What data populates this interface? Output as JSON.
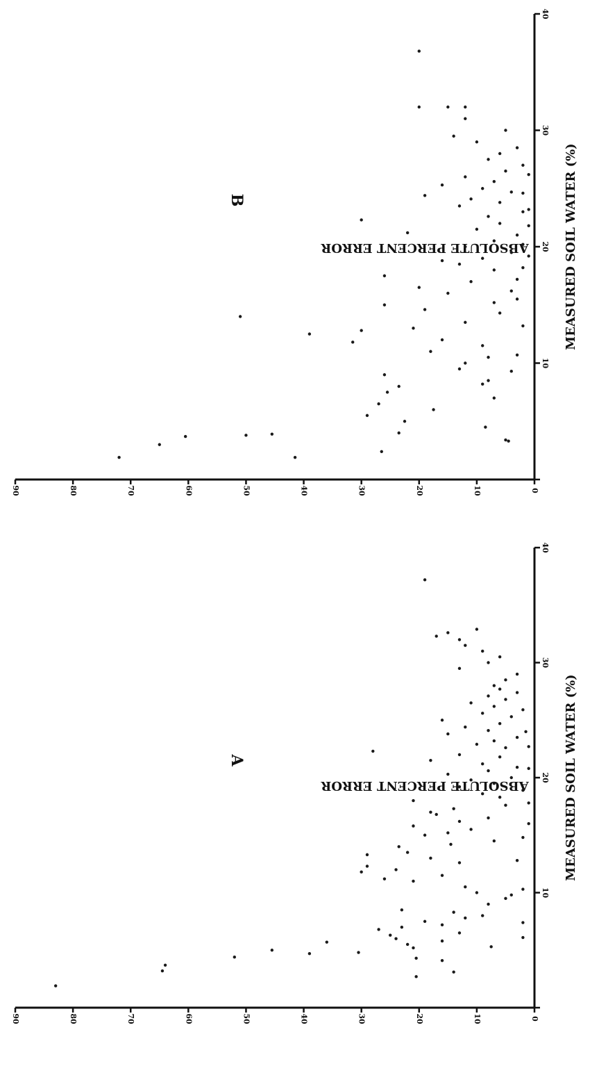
{
  "chart_data": [
    {
      "type": "scatter",
      "panel_label": "A",
      "xlabel": "MEASURED SOIL WATER (%)",
      "ylabel": "ABSOLUTE PERCENT ERROR",
      "xlim": [
        0,
        40
      ],
      "ylim": [
        0,
        90
      ],
      "xticks": [
        0,
        10,
        20,
        30,
        40
      ],
      "yticks": [
        0,
        10,
        20,
        30,
        40,
        50,
        60,
        70,
        80,
        90
      ],
      "x_tick_labels": [
        "10",
        "20",
        "30",
        "40"
      ],
      "y_tick_labels": [
        "0",
        "10",
        "20",
        "30",
        "40",
        "50",
        "60",
        "70",
        "80",
        "90"
      ],
      "grid": false,
      "points": [
        [
          1.9,
          83
        ],
        [
          2.7,
          20.5
        ],
        [
          3.2,
          64.5
        ],
        [
          3.7,
          64
        ],
        [
          4.3,
          20.5
        ],
        [
          4.4,
          52
        ],
        [
          4.7,
          39
        ],
        [
          4.8,
          30.5
        ],
        [
          5,
          45.5
        ],
        [
          5.2,
          21
        ],
        [
          5.3,
          7.5
        ],
        [
          5.5,
          22
        ],
        [
          5.7,
          36
        ],
        [
          6,
          24
        ],
        [
          6.3,
          25
        ],
        [
          6.5,
          13
        ],
        [
          6.8,
          27
        ],
        [
          7,
          23
        ],
        [
          7.2,
          16
        ],
        [
          7.5,
          19
        ],
        [
          7.8,
          12
        ],
        [
          8,
          9
        ],
        [
          8.3,
          14
        ],
        [
          8.5,
          23
        ],
        [
          9,
          8
        ],
        [
          9.5,
          5
        ],
        [
          10,
          10
        ],
        [
          10.5,
          12
        ],
        [
          11,
          21
        ],
        [
          11.2,
          26
        ],
        [
          11.5,
          16
        ],
        [
          11.8,
          30
        ],
        [
          12,
          24
        ],
        [
          12.3,
          29
        ],
        [
          12.6,
          13
        ],
        [
          13,
          18
        ],
        [
          13.3,
          29
        ],
        [
          13.5,
          22
        ],
        [
          14,
          23.5
        ],
        [
          14.2,
          14.5
        ],
        [
          14.5,
          7
        ],
        [
          15,
          19
        ],
        [
          15.2,
          15
        ],
        [
          15.5,
          11
        ],
        [
          15.8,
          21
        ],
        [
          16.2,
          13
        ],
        [
          16.5,
          8
        ],
        [
          16.8,
          17
        ],
        [
          17,
          18
        ],
        [
          17.3,
          14
        ],
        [
          17.6,
          5
        ],
        [
          18,
          21
        ],
        [
          18.3,
          6
        ],
        [
          18.6,
          9
        ],
        [
          18.9,
          2
        ],
        [
          19.2,
          13
        ],
        [
          19.5,
          7
        ],
        [
          19.8,
          11
        ],
        [
          20,
          4
        ],
        [
          20.3,
          15
        ],
        [
          20.6,
          8
        ],
        [
          20.9,
          3
        ],
        [
          21.2,
          9
        ],
        [
          21.5,
          18
        ],
        [
          21.8,
          6
        ],
        [
          22,
          13
        ],
        [
          22.3,
          28
        ],
        [
          22.6,
          5
        ],
        [
          22.9,
          10
        ],
        [
          23.2,
          7
        ],
        [
          23.5,
          3
        ],
        [
          23.8,
          15
        ],
        [
          24.1,
          8
        ],
        [
          24.4,
          12
        ],
        [
          24.7,
          6
        ],
        [
          25,
          16
        ],
        [
          25.3,
          4
        ],
        [
          25.6,
          9
        ],
        [
          25.9,
          2
        ],
        [
          26.2,
          7
        ],
        [
          26.5,
          11
        ],
        [
          26.8,
          5
        ],
        [
          27.1,
          8
        ],
        [
          27.4,
          3
        ],
        [
          27.7,
          6
        ],
        [
          28,
          7
        ],
        [
          28.5,
          5
        ],
        [
          29,
          3
        ],
        [
          29.5,
          13
        ],
        [
          30,
          8
        ],
        [
          30.5,
          6
        ],
        [
          31,
          9
        ],
        [
          31.5,
          12
        ],
        [
          32,
          13
        ],
        [
          32.3,
          17
        ],
        [
          32.6,
          15
        ],
        [
          32.9,
          10
        ],
        [
          37.2,
          19
        ],
        [
          3.1,
          14
        ],
        [
          4.1,
          16
        ],
        [
          5.8,
          16
        ],
        [
          6.1,
          2
        ],
        [
          7.4,
          2
        ],
        [
          9.8,
          4
        ],
        [
          10.3,
          2
        ],
        [
          12.8,
          3
        ],
        [
          14.8,
          2
        ],
        [
          16,
          1
        ],
        [
          17.8,
          1
        ],
        [
          20.8,
          1
        ],
        [
          22.7,
          1
        ],
        [
          24,
          1.5
        ]
      ]
    },
    {
      "type": "scatter",
      "panel_label": "B",
      "xlabel": "MEASURED SOIL WATER (%)",
      "ylabel": "ABSOLUTE PERCENT ERROR",
      "xlim": [
        0,
        40
      ],
      "ylim": [
        0,
        90
      ],
      "xticks": [
        0,
        10,
        20,
        30,
        40
      ],
      "yticks": [
        0,
        10,
        20,
        30,
        40,
        50,
        60,
        70,
        80,
        90
      ],
      "x_tick_labels": [
        "10",
        "20",
        "30",
        "40"
      ],
      "y_tick_labels": [
        "0",
        "10",
        "20",
        "30",
        "40",
        "50",
        "60",
        "70",
        "80",
        "90"
      ],
      "grid": false,
      "points": [
        [
          1.9,
          72
        ],
        [
          1.9,
          41.5
        ],
        [
          2.4,
          26.5
        ],
        [
          3,
          65
        ],
        [
          3.3,
          4.5
        ],
        [
          3.4,
          5
        ],
        [
          3.7,
          60.5
        ],
        [
          3.8,
          50
        ],
        [
          3.9,
          45.5
        ],
        [
          4,
          23.5
        ],
        [
          4.5,
          8.5
        ],
        [
          5,
          22.5
        ],
        [
          5.5,
          29
        ],
        [
          6,
          17.5
        ],
        [
          6.5,
          27
        ],
        [
          7,
          7
        ],
        [
          7.5,
          25.5
        ],
        [
          8,
          23.5
        ],
        [
          8.5,
          8
        ],
        [
          9,
          26
        ],
        [
          9.5,
          13
        ],
        [
          10,
          12
        ],
        [
          10.5,
          8
        ],
        [
          11,
          18
        ],
        [
          11.5,
          9
        ],
        [
          11.8,
          31.5
        ],
        [
          12,
          16
        ],
        [
          12.5,
          39
        ],
        [
          12.8,
          30
        ],
        [
          13,
          21
        ],
        [
          13.5,
          12
        ],
        [
          14,
          51
        ],
        [
          14.3,
          6
        ],
        [
          14.6,
          19
        ],
        [
          15,
          26
        ],
        [
          15.5,
          3
        ],
        [
          16,
          15
        ],
        [
          16.5,
          20
        ],
        [
          17,
          11
        ],
        [
          17.5,
          26
        ],
        [
          18,
          7
        ],
        [
          18.5,
          13
        ],
        [
          18.8,
          16
        ],
        [
          19,
          9
        ],
        [
          19.5,
          4
        ],
        [
          20,
          12
        ],
        [
          20.5,
          7
        ],
        [
          21,
          3
        ],
        [
          21.2,
          22
        ],
        [
          21.5,
          10
        ],
        [
          22,
          6
        ],
        [
          22.3,
          30
        ],
        [
          22.6,
          8
        ],
        [
          23,
          2
        ],
        [
          23.5,
          13
        ],
        [
          23.8,
          6
        ],
        [
          24.1,
          11
        ],
        [
          24.4,
          19
        ],
        [
          24.7,
          4
        ],
        [
          25,
          9
        ],
        [
          25.3,
          16
        ],
        [
          25.6,
          7
        ],
        [
          26,
          12
        ],
        [
          26.5,
          5
        ],
        [
          27,
          2
        ],
        [
          27.5,
          8
        ],
        [
          28,
          6
        ],
        [
          28.5,
          3
        ],
        [
          29,
          10
        ],
        [
          29.5,
          14
        ],
        [
          30,
          5
        ],
        [
          31,
          12
        ],
        [
          32,
          20
        ],
        [
          32,
          15
        ],
        [
          32,
          12
        ],
        [
          36.8,
          20
        ],
        [
          8.2,
          9
        ],
        [
          9.3,
          4
        ],
        [
          10.7,
          3
        ],
        [
          13.2,
          2
        ],
        [
          15.2,
          7
        ],
        [
          16.2,
          4
        ],
        [
          17.2,
          3
        ],
        [
          18.2,
          2
        ],
        [
          19.2,
          1
        ],
        [
          20.2,
          2
        ],
        [
          21.8,
          1
        ],
        [
          23.2,
          1
        ],
        [
          24.6,
          2
        ],
        [
          26.2,
          1
        ]
      ]
    }
  ]
}
